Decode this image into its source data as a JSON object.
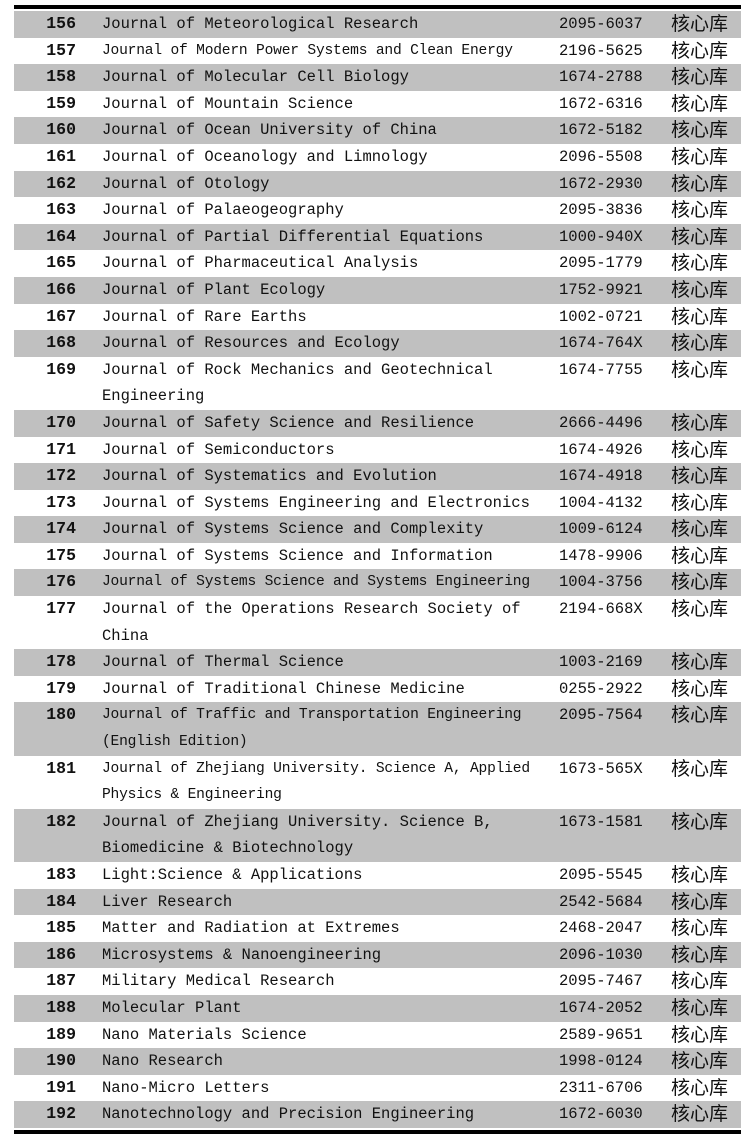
{
  "colors": {
    "row_shade": "#c0c0c0",
    "rule": "#000000",
    "text": "#111111"
  },
  "table": {
    "description_columns": [
      "row-number",
      "journal-name",
      "issn",
      "database-tag"
    ],
    "rows": [
      {
        "no": "156",
        "name_lines": [
          "Journal of Meteorological Research"
        ],
        "issn": "2095-6037",
        "tag": "核心库",
        "shaded": true,
        "condensed": false
      },
      {
        "no": "157",
        "name_lines": [
          "Journal of Modern Power Systems and Clean Energy"
        ],
        "issn": "2196-5625",
        "tag": "核心库",
        "shaded": false,
        "condensed": true
      },
      {
        "no": "158",
        "name_lines": [
          "Journal of Molecular Cell Biology"
        ],
        "issn": "1674-2788",
        "tag": "核心库",
        "shaded": true,
        "condensed": false
      },
      {
        "no": "159",
        "name_lines": [
          "Journal of Mountain Science"
        ],
        "issn": "1672-6316",
        "tag": "核心库",
        "shaded": false,
        "condensed": false
      },
      {
        "no": "160",
        "name_lines": [
          "Journal of Ocean University of China"
        ],
        "issn": "1672-5182",
        "tag": "核心库",
        "shaded": true,
        "condensed": false
      },
      {
        "no": "161",
        "name_lines": [
          "Journal of Oceanology and Limnology"
        ],
        "issn": "2096-5508",
        "tag": "核心库",
        "shaded": false,
        "condensed": false
      },
      {
        "no": "162",
        "name_lines": [
          "Journal of Otology"
        ],
        "issn": "1672-2930",
        "tag": "核心库",
        "shaded": true,
        "condensed": false
      },
      {
        "no": "163",
        "name_lines": [
          "Journal of Palaeogeography"
        ],
        "issn": "2095-3836",
        "tag": "核心库",
        "shaded": false,
        "condensed": false
      },
      {
        "no": "164",
        "name_lines": [
          "Journal of Partial Differential Equations"
        ],
        "issn": "1000-940X",
        "tag": "核心库",
        "shaded": true,
        "condensed": false
      },
      {
        "no": "165",
        "name_lines": [
          "Journal of Pharmaceutical Analysis"
        ],
        "issn": "2095-1779",
        "tag": "核心库",
        "shaded": false,
        "condensed": false
      },
      {
        "no": "166",
        "name_lines": [
          "Journal of Plant Ecology"
        ],
        "issn": "1752-9921",
        "tag": "核心库",
        "shaded": true,
        "condensed": false
      },
      {
        "no": "167",
        "name_lines": [
          "Journal of Rare Earths"
        ],
        "issn": "1002-0721",
        "tag": "核心库",
        "shaded": false,
        "condensed": false
      },
      {
        "no": "168",
        "name_lines": [
          "Journal of Resources and Ecology"
        ],
        "issn": "1674-764X",
        "tag": "核心库",
        "shaded": true,
        "condensed": false
      },
      {
        "no": "169",
        "name_lines": [
          "Journal of Rock Mechanics and Geotechnical",
          "Engineering"
        ],
        "issn": "1674-7755",
        "tag": "核心库",
        "shaded": false,
        "condensed": false
      },
      {
        "no": "170",
        "name_lines": [
          "Journal of Safety Science and Resilience"
        ],
        "issn": "2666-4496",
        "tag": "核心库",
        "shaded": true,
        "condensed": false
      },
      {
        "no": "171",
        "name_lines": [
          "Journal of Semiconductors"
        ],
        "issn": "1674-4926",
        "tag": "核心库",
        "shaded": false,
        "condensed": false
      },
      {
        "no": "172",
        "name_lines": [
          "Journal of Systematics and Evolution"
        ],
        "issn": "1674-4918",
        "tag": "核心库",
        "shaded": true,
        "condensed": false
      },
      {
        "no": "173",
        "name_lines": [
          "Journal of Systems Engineering and Electronics"
        ],
        "issn": "1004-4132",
        "tag": "核心库",
        "shaded": false,
        "condensed": false
      },
      {
        "no": "174",
        "name_lines": [
          "Journal of Systems Science and Complexity"
        ],
        "issn": "1009-6124",
        "tag": "核心库",
        "shaded": true,
        "condensed": false
      },
      {
        "no": "175",
        "name_lines": [
          "Journal of Systems Science and Information"
        ],
        "issn": "1478-9906",
        "tag": "核心库",
        "shaded": false,
        "condensed": false
      },
      {
        "no": "176",
        "name_lines": [
          "Journal of Systems Science and Systems Engineering"
        ],
        "issn": "1004-3756",
        "tag": "核心库",
        "shaded": true,
        "condensed": true
      },
      {
        "no": "177",
        "name_lines": [
          "Journal of the Operations Research Society of",
          "China"
        ],
        "issn": "2194-668X",
        "tag": "核心库",
        "shaded": false,
        "condensed": false
      },
      {
        "no": "178",
        "name_lines": [
          "Journal of Thermal Science"
        ],
        "issn": "1003-2169",
        "tag": "核心库",
        "shaded": true,
        "condensed": false
      },
      {
        "no": "179",
        "name_lines": [
          "Journal of Traditional Chinese Medicine"
        ],
        "issn": "0255-2922",
        "tag": "核心库",
        "shaded": false,
        "condensed": false
      },
      {
        "no": "180",
        "name_lines": [
          "Journal of Traffic and Transportation Engineering",
          "(English Edition)"
        ],
        "issn": "2095-7564",
        "tag": "核心库",
        "shaded": true,
        "condensed": true
      },
      {
        "no": "181",
        "name_lines": [
          "Journal of Zhejiang University. Science A, Applied",
          "Physics & Engineering"
        ],
        "issn": "1673-565X",
        "tag": "核心库",
        "shaded": false,
        "condensed": true
      },
      {
        "no": "182",
        "name_lines": [
          "Journal of Zhejiang University. Science B,",
          "Biomedicine & Biotechnology"
        ],
        "issn": "1673-1581",
        "tag": "核心库",
        "shaded": true,
        "condensed": false
      },
      {
        "no": "183",
        "name_lines": [
          "Light:Science & Applications"
        ],
        "issn": "2095-5545",
        "tag": "核心库",
        "shaded": false,
        "condensed": false
      },
      {
        "no": "184",
        "name_lines": [
          "Liver Research"
        ],
        "issn": "2542-5684",
        "tag": "核心库",
        "shaded": true,
        "condensed": false
      },
      {
        "no": "185",
        "name_lines": [
          "Matter and Radiation at Extremes"
        ],
        "issn": "2468-2047",
        "tag": "核心库",
        "shaded": false,
        "condensed": false
      },
      {
        "no": "186",
        "name_lines": [
          "Microsystems & Nanoengineering"
        ],
        "issn": "2096-1030",
        "tag": "核心库",
        "shaded": true,
        "condensed": false
      },
      {
        "no": "187",
        "name_lines": [
          "Military Medical Research"
        ],
        "issn": "2095-7467",
        "tag": "核心库",
        "shaded": false,
        "condensed": false
      },
      {
        "no": "188",
        "name_lines": [
          "Molecular Plant"
        ],
        "issn": "1674-2052",
        "tag": "核心库",
        "shaded": true,
        "condensed": false
      },
      {
        "no": "189",
        "name_lines": [
          "Nano Materials Science"
        ],
        "issn": "2589-9651",
        "tag": "核心库",
        "shaded": false,
        "condensed": false
      },
      {
        "no": "190",
        "name_lines": [
          "Nano Research"
        ],
        "issn": "1998-0124",
        "tag": "核心库",
        "shaded": true,
        "condensed": false
      },
      {
        "no": "191",
        "name_lines": [
          "Nano-Micro Letters"
        ],
        "issn": "2311-6706",
        "tag": "核心库",
        "shaded": false,
        "condensed": false
      },
      {
        "no": "192",
        "name_lines": [
          "Nanotechnology and Precision Engineering"
        ],
        "issn": "1672-6030",
        "tag": "核心库",
        "shaded": true,
        "condensed": false
      }
    ]
  }
}
